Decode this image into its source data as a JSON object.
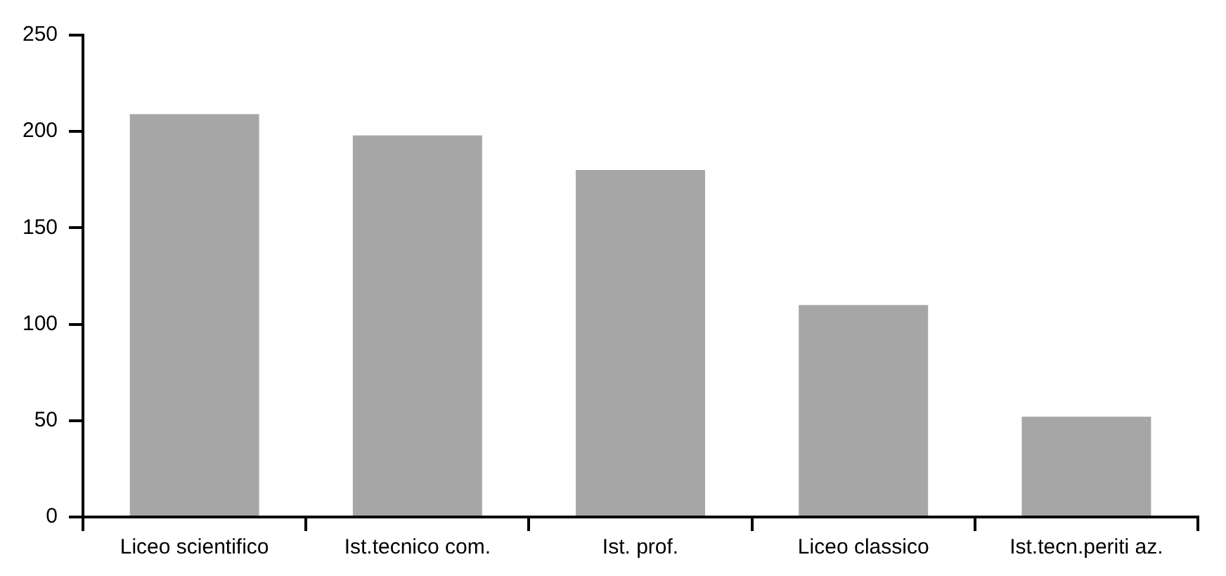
{
  "chart_data": {
    "type": "bar",
    "categories": [
      "Liceo scientifico",
      "Ist.tecnico com.",
      "Ist. prof.",
      "Liceo classico",
      "Ist.tecn.periti az."
    ],
    "values": [
      209,
      198,
      180,
      110,
      52
    ],
    "color": "#a6a6a6",
    "ylim": [
      0,
      250
    ],
    "yticks": [
      0,
      50,
      100,
      150,
      200,
      250
    ],
    "grid": false,
    "legend": false
  }
}
